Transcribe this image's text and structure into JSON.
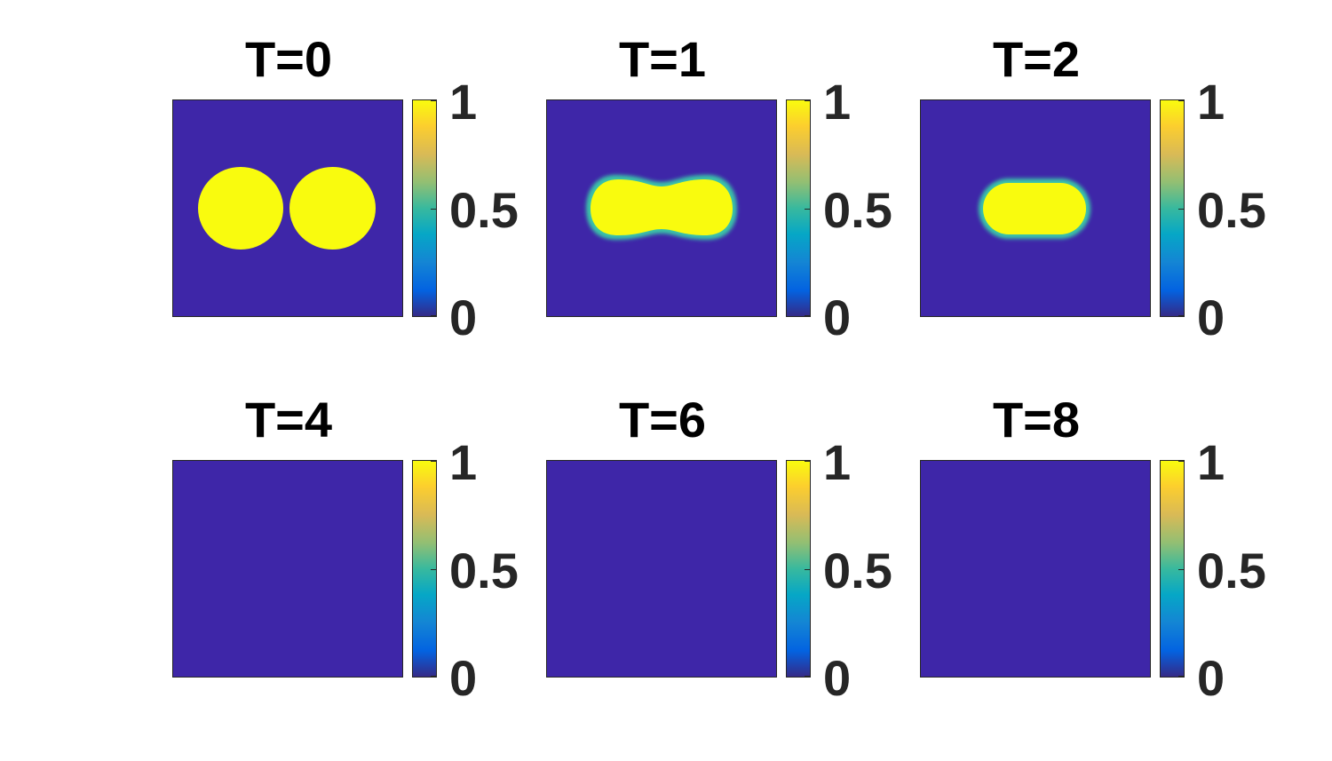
{
  "chart_data": {
    "type": "heatmap",
    "colormap": "parula",
    "color_range": [
      0,
      1
    ],
    "colorbar_ticks": [
      "0",
      "0.5",
      "1"
    ],
    "colors": {
      "low": "#3E26A8",
      "high": "#F9FB0E",
      "background": "#ffffff"
    },
    "panels": [
      {
        "title": "T=0",
        "max_value": 1,
        "min_value": 0,
        "shape": "two separate disks"
      },
      {
        "title": "T=1",
        "max_value": 1,
        "min_value": 0,
        "shape": "merged elongated blob"
      },
      {
        "title": "T=2",
        "max_value": 1,
        "min_value": 0,
        "shape": "smaller ellipse"
      },
      {
        "title": "T=4",
        "max_value": 0,
        "min_value": 0,
        "shape": "empty"
      },
      {
        "title": "T=6",
        "max_value": 0,
        "min_value": 0,
        "shape": "empty"
      },
      {
        "title": "T=8",
        "max_value": 0,
        "min_value": 0,
        "shape": "empty"
      }
    ]
  }
}
